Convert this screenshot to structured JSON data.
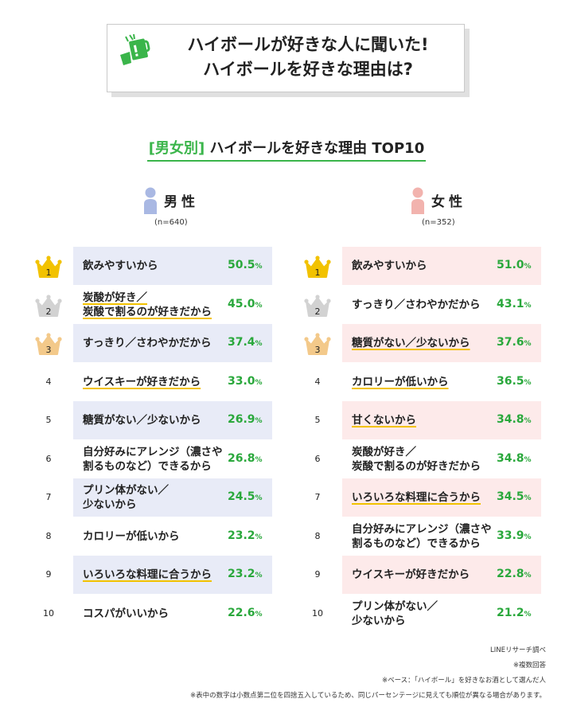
{
  "header": {
    "title_line1": "ハイボールが好きな人に聞いた!",
    "title_line2": "ハイボールを好きな理由は?",
    "icon": "beer-mug-icon"
  },
  "subtitle": {
    "bracket": "[男女別]",
    "main": " ハイボールを好きな理由 TOP10"
  },
  "colors": {
    "accent_green": "#3ab54a",
    "percent_green": "#2aa83c",
    "male_shade": "#e8ebf7",
    "female_shade": "#fdeaea",
    "male_icon": "#a9b8e3",
    "female_icon": "#f2b3ae",
    "gold": "#f2c200",
    "silver": "#d2d2d2",
    "bronze": "#f3c98a",
    "underline": "#f2c200"
  },
  "male": {
    "label": "男性",
    "n": "(n=640)"
  },
  "female": {
    "label": "女性",
    "n": "(n=352)"
  },
  "percent_unit": "%",
  "chart_data": [
    {
      "type": "table",
      "series_name": "男性",
      "ranks": [
        "1",
        "2",
        "3",
        "4",
        "5",
        "6",
        "7",
        "8",
        "9",
        "10"
      ],
      "reasons": [
        "飲みやすいから",
        "炭酸が好き／\n炭酸で割るのが好きだから",
        "すっきり／さわやかだから",
        "ウイスキーが好きだから",
        "糖質がない／少ないから",
        "自分好みにアレンジ（濃さや\n割るものなど）できるから",
        "プリン体がない／\n少ないから",
        "カロリーが低いから",
        "いろいろな料理に合うから",
        "コスパがいいから"
      ],
      "values": [
        50.5,
        45.0,
        37.4,
        33.0,
        26.9,
        26.8,
        24.5,
        23.2,
        23.2,
        22.6
      ],
      "value_labels": [
        "50.5",
        "45.0",
        "37.4",
        "33.0",
        "26.9",
        "26.8",
        "24.5",
        "23.2",
        "23.2",
        "22.6"
      ],
      "underlined": [
        false,
        true,
        false,
        true,
        false,
        false,
        false,
        false,
        true,
        false
      ]
    },
    {
      "type": "table",
      "series_name": "女性",
      "ranks": [
        "1",
        "2",
        "3",
        "4",
        "5",
        "6",
        "7",
        "8",
        "9",
        "10"
      ],
      "reasons": [
        "飲みやすいから",
        "すっきり／さわやかだから",
        "糖質がない／少ないから",
        "カロリーが低いから",
        "甘くないから",
        "炭酸が好き／\n炭酸で割るのが好きだから",
        "いろいろな料理に合うから",
        "自分好みにアレンジ（濃さや\n割るものなど）できるから",
        "ウイスキーが好きだから",
        "プリン体がない／\n少ないから"
      ],
      "values": [
        51.0,
        43.1,
        37.6,
        36.5,
        34.8,
        34.8,
        34.5,
        33.9,
        22.8,
        21.2
      ],
      "value_labels": [
        "51.0",
        "43.1",
        "37.6",
        "36.5",
        "34.8",
        "34.8",
        "34.5",
        "33.9",
        "22.8",
        "21.2"
      ],
      "underlined": [
        false,
        false,
        true,
        true,
        true,
        false,
        true,
        false,
        false,
        false
      ]
    }
  ],
  "footnotes": {
    "source": "LINEリサーチ調べ",
    "multiple": "※複数回答",
    "base": "※ベース：「ハイボール」を好きなお酒として選んだ人",
    "rounding": "※表中の数字は小数点第二位を四捨五入しているため、同じパーセンテージに見えても順位が異なる場合があります。"
  }
}
